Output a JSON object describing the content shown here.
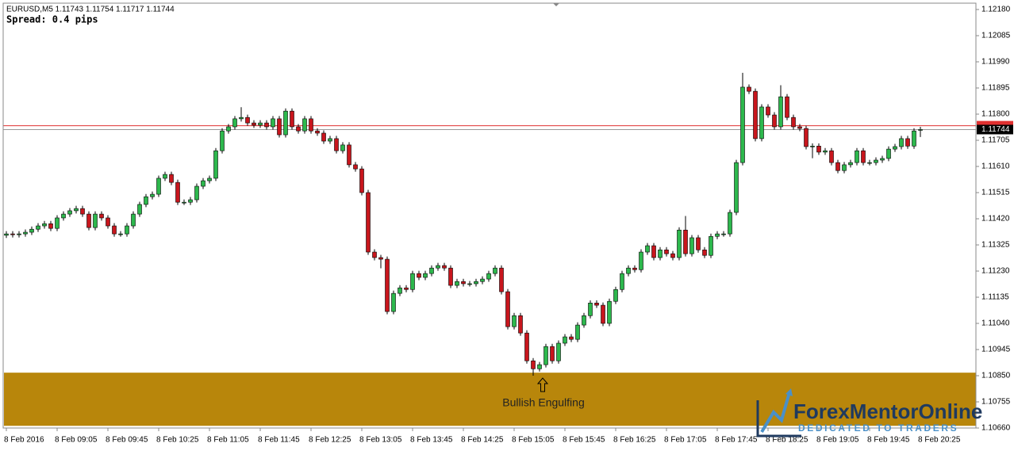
{
  "chart_data": {
    "type": "candlestick",
    "title": "EURUSD,M5 1.11743 1.11754 1.11717 1.11744",
    "subtitle": "Spread: 0.4 pips",
    "categories": [
      "8 Feb 2016",
      null,
      null,
      null,
      null,
      null,
      null,
      null,
      "8 Feb 09:05",
      null,
      null,
      null,
      null,
      null,
      null,
      null,
      "8 Feb 09:45",
      null,
      null,
      null,
      null,
      null,
      null,
      null,
      "8 Feb 10:25",
      null,
      null,
      null,
      null,
      null,
      null,
      null,
      "8 Feb 11:05",
      null,
      null,
      null,
      null,
      null,
      null,
      null,
      "8 Feb 11:45",
      null,
      null,
      null,
      null,
      null,
      null,
      null,
      "8 Feb 12:25",
      null,
      null,
      null,
      null,
      null,
      null,
      null,
      "8 Feb 13:05",
      null,
      null,
      null,
      null,
      null,
      null,
      null,
      "8 Feb 13:45",
      null,
      null,
      null,
      null,
      null,
      null,
      null,
      "8 Feb 14:25",
      null,
      null,
      null,
      null,
      null,
      null,
      null,
      "8 Feb 15:05",
      null,
      null,
      null,
      null,
      null,
      null,
      null,
      "8 Feb 15:45",
      null,
      null,
      null,
      null,
      null,
      null,
      null,
      "8 Feb 16:25",
      null,
      null,
      null,
      null,
      null,
      null,
      null,
      "8 Feb 17:05",
      null,
      null,
      null,
      null,
      null,
      null,
      null,
      "8 Feb 17:45",
      null,
      null,
      null,
      null,
      null,
      null,
      null,
      "8 Feb 18:25",
      null,
      null,
      null,
      null,
      null,
      null,
      null,
      "8 Feb 19:05",
      null,
      null,
      null,
      null,
      null,
      null,
      null,
      "8 Feb 19:45",
      null,
      null,
      null,
      null,
      null,
      null,
      null,
      "8 Feb 20:25"
    ],
    "open": [
      1.1136,
      1.11365,
      1.11362,
      1.11365,
      1.11371,
      1.11382,
      1.11394,
      1.11402,
      1.11385,
      1.11423,
      1.11437,
      1.11449,
      1.11457,
      1.11437,
      1.11388,
      1.11437,
      1.11423,
      1.11394,
      1.11365,
      1.11365,
      1.11394,
      1.11437,
      1.11472,
      1.115,
      1.11509,
      1.11567,
      1.11581,
      1.11552,
      1.1148,
      1.1148,
      1.11489,
      1.11538,
      1.11558,
      1.11567,
      1.11667,
      1.11739,
      1.11754,
      1.11783,
      1.11788,
      1.11768,
      1.1176,
      1.11768,
      1.11754,
      1.11783,
      1.11725,
      1.11811,
      1.11754,
      1.11739,
      1.11783,
      1.11739,
      1.11731,
      1.11702,
      1.11711,
      1.11667,
      1.11688,
      1.11616,
      1.11601,
      1.11515,
      1.11299,
      1.11279,
      1.11273,
      1.11083,
      1.11149,
      1.11169,
      1.11163,
      1.11221,
      1.11207,
      1.11221,
      1.11241,
      1.1125,
      1.11241,
      1.11178,
      1.11192,
      1.11184,
      1.11184,
      1.11192,
      1.11201,
      1.11221,
      1.11241,
      1.11155,
      1.11028,
      1.11068,
      1.11005,
      1.10904,
      1.10875,
      1.1089,
      1.10956,
      1.10904,
      1.10968,
      1.10991,
      1.10982,
      1.11034,
      1.11068,
      1.11114,
      1.11106,
      1.1104,
      1.1112,
      1.11163,
      1.11221,
      1.11241,
      1.11235,
      1.11299,
      1.11322,
      1.11279,
      1.11307,
      1.11293,
      1.11279,
      1.11379,
      1.11293,
      1.11351,
      1.11307,
      1.11287,
      1.11356,
      1.11365,
      1.11365,
      1.11443,
      1.11624,
      1.11898,
      1.11883,
      1.11711,
      1.11826,
      1.11797,
      1.11754,
      1.11863,
      1.11788,
      1.11754,
      1.11748,
      1.11682,
      1.11684,
      1.11662,
      1.11667,
      1.11624,
      1.11595,
      1.11616,
      1.11624,
      1.11667,
      1.11624,
      1.11624,
      1.11633,
      1.11639,
      1.11673,
      1.11682,
      1.11711,
      1.11684,
      1.11743
    ],
    "high": [
      1.11375,
      1.11375,
      1.11375,
      1.11381,
      1.11392,
      1.11404,
      1.11412,
      1.11412,
      1.11433,
      1.11447,
      1.11459,
      1.11467,
      1.11467,
      1.11447,
      1.11447,
      1.11447,
      1.11433,
      1.11404,
      1.11375,
      1.11404,
      1.11447,
      1.11482,
      1.1151,
      1.11519,
      1.11577,
      1.11591,
      1.11591,
      1.11562,
      1.1149,
      1.11499,
      1.11548,
      1.11568,
      1.11577,
      1.11677,
      1.11749,
      1.11764,
      1.11793,
      1.11825,
      1.11798,
      1.11778,
      1.11778,
      1.11778,
      1.11793,
      1.11793,
      1.11821,
      1.11821,
      1.11764,
      1.11793,
      1.11793,
      1.11749,
      1.11741,
      1.11721,
      1.11721,
      1.11698,
      1.11698,
      1.11626,
      1.11611,
      1.11525,
      1.11309,
      1.11289,
      1.11283,
      1.11159,
      1.11179,
      1.11179,
      1.11231,
      1.11231,
      1.11231,
      1.11251,
      1.1126,
      1.1126,
      1.11251,
      1.11202,
      1.11202,
      1.11194,
      1.11202,
      1.11211,
      1.11231,
      1.11251,
      1.11251,
      1.11165,
      1.11078,
      1.11078,
      1.11015,
      1.10914,
      1.109,
      1.10966,
      1.10966,
      1.10978,
      1.11001,
      1.11001,
      1.11044,
      1.11078,
      1.11124,
      1.11124,
      1.11116,
      1.1113,
      1.11173,
      1.11231,
      1.11251,
      1.11251,
      1.11309,
      1.11332,
      1.11332,
      1.11317,
      1.11317,
      1.11303,
      1.11389,
      1.1143,
      1.11361,
      1.11361,
      1.11317,
      1.11366,
      1.11375,
      1.11375,
      1.11453,
      1.11634,
      1.1195,
      1.11908,
      1.11893,
      1.11836,
      1.11836,
      1.11807,
      1.11905,
      1.11873,
      1.11798,
      1.11764,
      1.11758,
      1.11694,
      1.11694,
      1.11677,
      1.11677,
      1.11634,
      1.11626,
      1.11634,
      1.11677,
      1.11677,
      1.11634,
      1.11643,
      1.11649,
      1.11683,
      1.11692,
      1.11721,
      1.11721,
      1.11749,
      1.11754
    ],
    "low": [
      1.1135,
      1.11352,
      1.11352,
      1.11355,
      1.11361,
      1.11372,
      1.11384,
      1.11375,
      1.11375,
      1.11413,
      1.11427,
      1.11439,
      1.11427,
      1.11378,
      1.11378,
      1.11413,
      1.11384,
      1.11355,
      1.11355,
      1.11355,
      1.11384,
      1.11427,
      1.11462,
      1.1149,
      1.11499,
      1.11557,
      1.11542,
      1.1147,
      1.1147,
      1.1147,
      1.11479,
      1.11528,
      1.11548,
      1.11557,
      1.11657,
      1.11729,
      1.11744,
      1.11773,
      1.11758,
      1.1175,
      1.1175,
      1.11744,
      1.11744,
      1.11715,
      1.11715,
      1.11744,
      1.11729,
      1.11729,
      1.11729,
      1.11721,
      1.11692,
      1.11692,
      1.11657,
      1.11657,
      1.11606,
      1.11591,
      1.11505,
      1.11289,
      1.11269,
      1.1124,
      1.11073,
      1.11073,
      1.11139,
      1.11153,
      1.11153,
      1.11197,
      1.11197,
      1.11211,
      1.11231,
      1.11231,
      1.11168,
      1.11168,
      1.11174,
      1.11174,
      1.11174,
      1.11182,
      1.11191,
      1.11211,
      1.11145,
      1.11018,
      1.11018,
      1.10995,
      1.10894,
      1.1085,
      1.10865,
      1.1088,
      1.10894,
      1.10894,
      1.10958,
      1.10972,
      1.10972,
      1.11024,
      1.11058,
      1.11096,
      1.1103,
      1.1103,
      1.1111,
      1.11153,
      1.11211,
      1.11225,
      1.11225,
      1.11289,
      1.11269,
      1.11269,
      1.11283,
      1.11269,
      1.11269,
      1.11283,
      1.11283,
      1.11297,
      1.11277,
      1.11277,
      1.11346,
      1.11355,
      1.11355,
      1.11433,
      1.11614,
      1.11873,
      1.11701,
      1.11701,
      1.11787,
      1.11744,
      1.11744,
      1.11778,
      1.11744,
      1.11738,
      1.11672,
      1.1164,
      1.11652,
      1.11652,
      1.11614,
      1.11585,
      1.11585,
      1.11606,
      1.11614,
      1.11614,
      1.11614,
      1.11614,
      1.11623,
      1.11629,
      1.11663,
      1.11672,
      1.11674,
      1.11674,
      1.11717
    ],
    "close": [
      1.11365,
      1.11362,
      1.11365,
      1.11371,
      1.11382,
      1.11394,
      1.11402,
      1.11385,
      1.11423,
      1.11437,
      1.11449,
      1.11457,
      1.11437,
      1.11388,
      1.11437,
      1.11423,
      1.11394,
      1.11365,
      1.11365,
      1.11394,
      1.11437,
      1.11472,
      1.115,
      1.11509,
      1.11567,
      1.11581,
      1.11552,
      1.1148,
      1.1148,
      1.11489,
      1.11538,
      1.11558,
      1.11567,
      1.11667,
      1.11739,
      1.11754,
      1.11783,
      1.11788,
      1.11768,
      1.1176,
      1.11768,
      1.11754,
      1.11783,
      1.11725,
      1.11811,
      1.11754,
      1.11739,
      1.11783,
      1.11739,
      1.11731,
      1.11702,
      1.11711,
      1.11667,
      1.11688,
      1.11616,
      1.11601,
      1.11515,
      1.11299,
      1.11279,
      1.11273,
      1.11083,
      1.11149,
      1.11169,
      1.11163,
      1.11221,
      1.11207,
      1.11221,
      1.11241,
      1.1125,
      1.11241,
      1.11178,
      1.11192,
      1.11184,
      1.11184,
      1.11192,
      1.11201,
      1.11221,
      1.11241,
      1.11155,
      1.11028,
      1.11068,
      1.11005,
      1.10904,
      1.10875,
      1.1089,
      1.10956,
      1.10904,
      1.10968,
      1.10991,
      1.10982,
      1.11034,
      1.11068,
      1.11114,
      1.11106,
      1.1104,
      1.1112,
      1.11163,
      1.11221,
      1.11241,
      1.11235,
      1.11299,
      1.11322,
      1.11279,
      1.11307,
      1.11293,
      1.11279,
      1.11379,
      1.11293,
      1.11351,
      1.11307,
      1.11287,
      1.11356,
      1.11365,
      1.11365,
      1.11443,
      1.11624,
      1.11898,
      1.11883,
      1.11711,
      1.11826,
      1.11797,
      1.11754,
      1.11863,
      1.11788,
      1.11754,
      1.11748,
      1.11682,
      1.11684,
      1.11662,
      1.11667,
      1.11624,
      1.11595,
      1.11616,
      1.11624,
      1.11667,
      1.11624,
      1.11624,
      1.11633,
      1.11639,
      1.11673,
      1.11682,
      1.11711,
      1.11684,
      1.11739,
      1.11744
    ],
    "up_color": "#2db84d",
    "down_color": "#c8161d",
    "ylim": [
      1.1066,
      1.12203
    ],
    "yticks": [
      {
        "value": 1.1218,
        "label": "1.12180"
      },
      1.12085,
      {
        "value": 1.1199,
        "label": "1.11990"
      },
      1.11895,
      {
        "value": 1.118,
        "label": "1.11800"
      },
      1.11705,
      {
        "value": 1.1161,
        "label": "1.11610"
      },
      1.11515,
      {
        "value": 1.1142,
        "label": "1.11420"
      },
      1.11325,
      {
        "value": 1.1123,
        "label": "1.11230"
      },
      1.11135,
      {
        "value": 1.1104,
        "label": "1.11040"
      },
      1.10945,
      {
        "value": 1.1085,
        "label": "1.10850"
      },
      1.10755,
      {
        "value": 1.1066,
        "label": "1.10660"
      }
    ],
    "bid_line": 1.11744,
    "ask_line": 1.11758,
    "zone": {
      "low": 1.10668,
      "high": 1.10861,
      "color": "#b8860b"
    },
    "annotation": "Bullish Engulfing"
  },
  "logo": {
    "name": "ForexMentorOnline",
    "tagline": "DEDICATED TO TRADERS"
  }
}
